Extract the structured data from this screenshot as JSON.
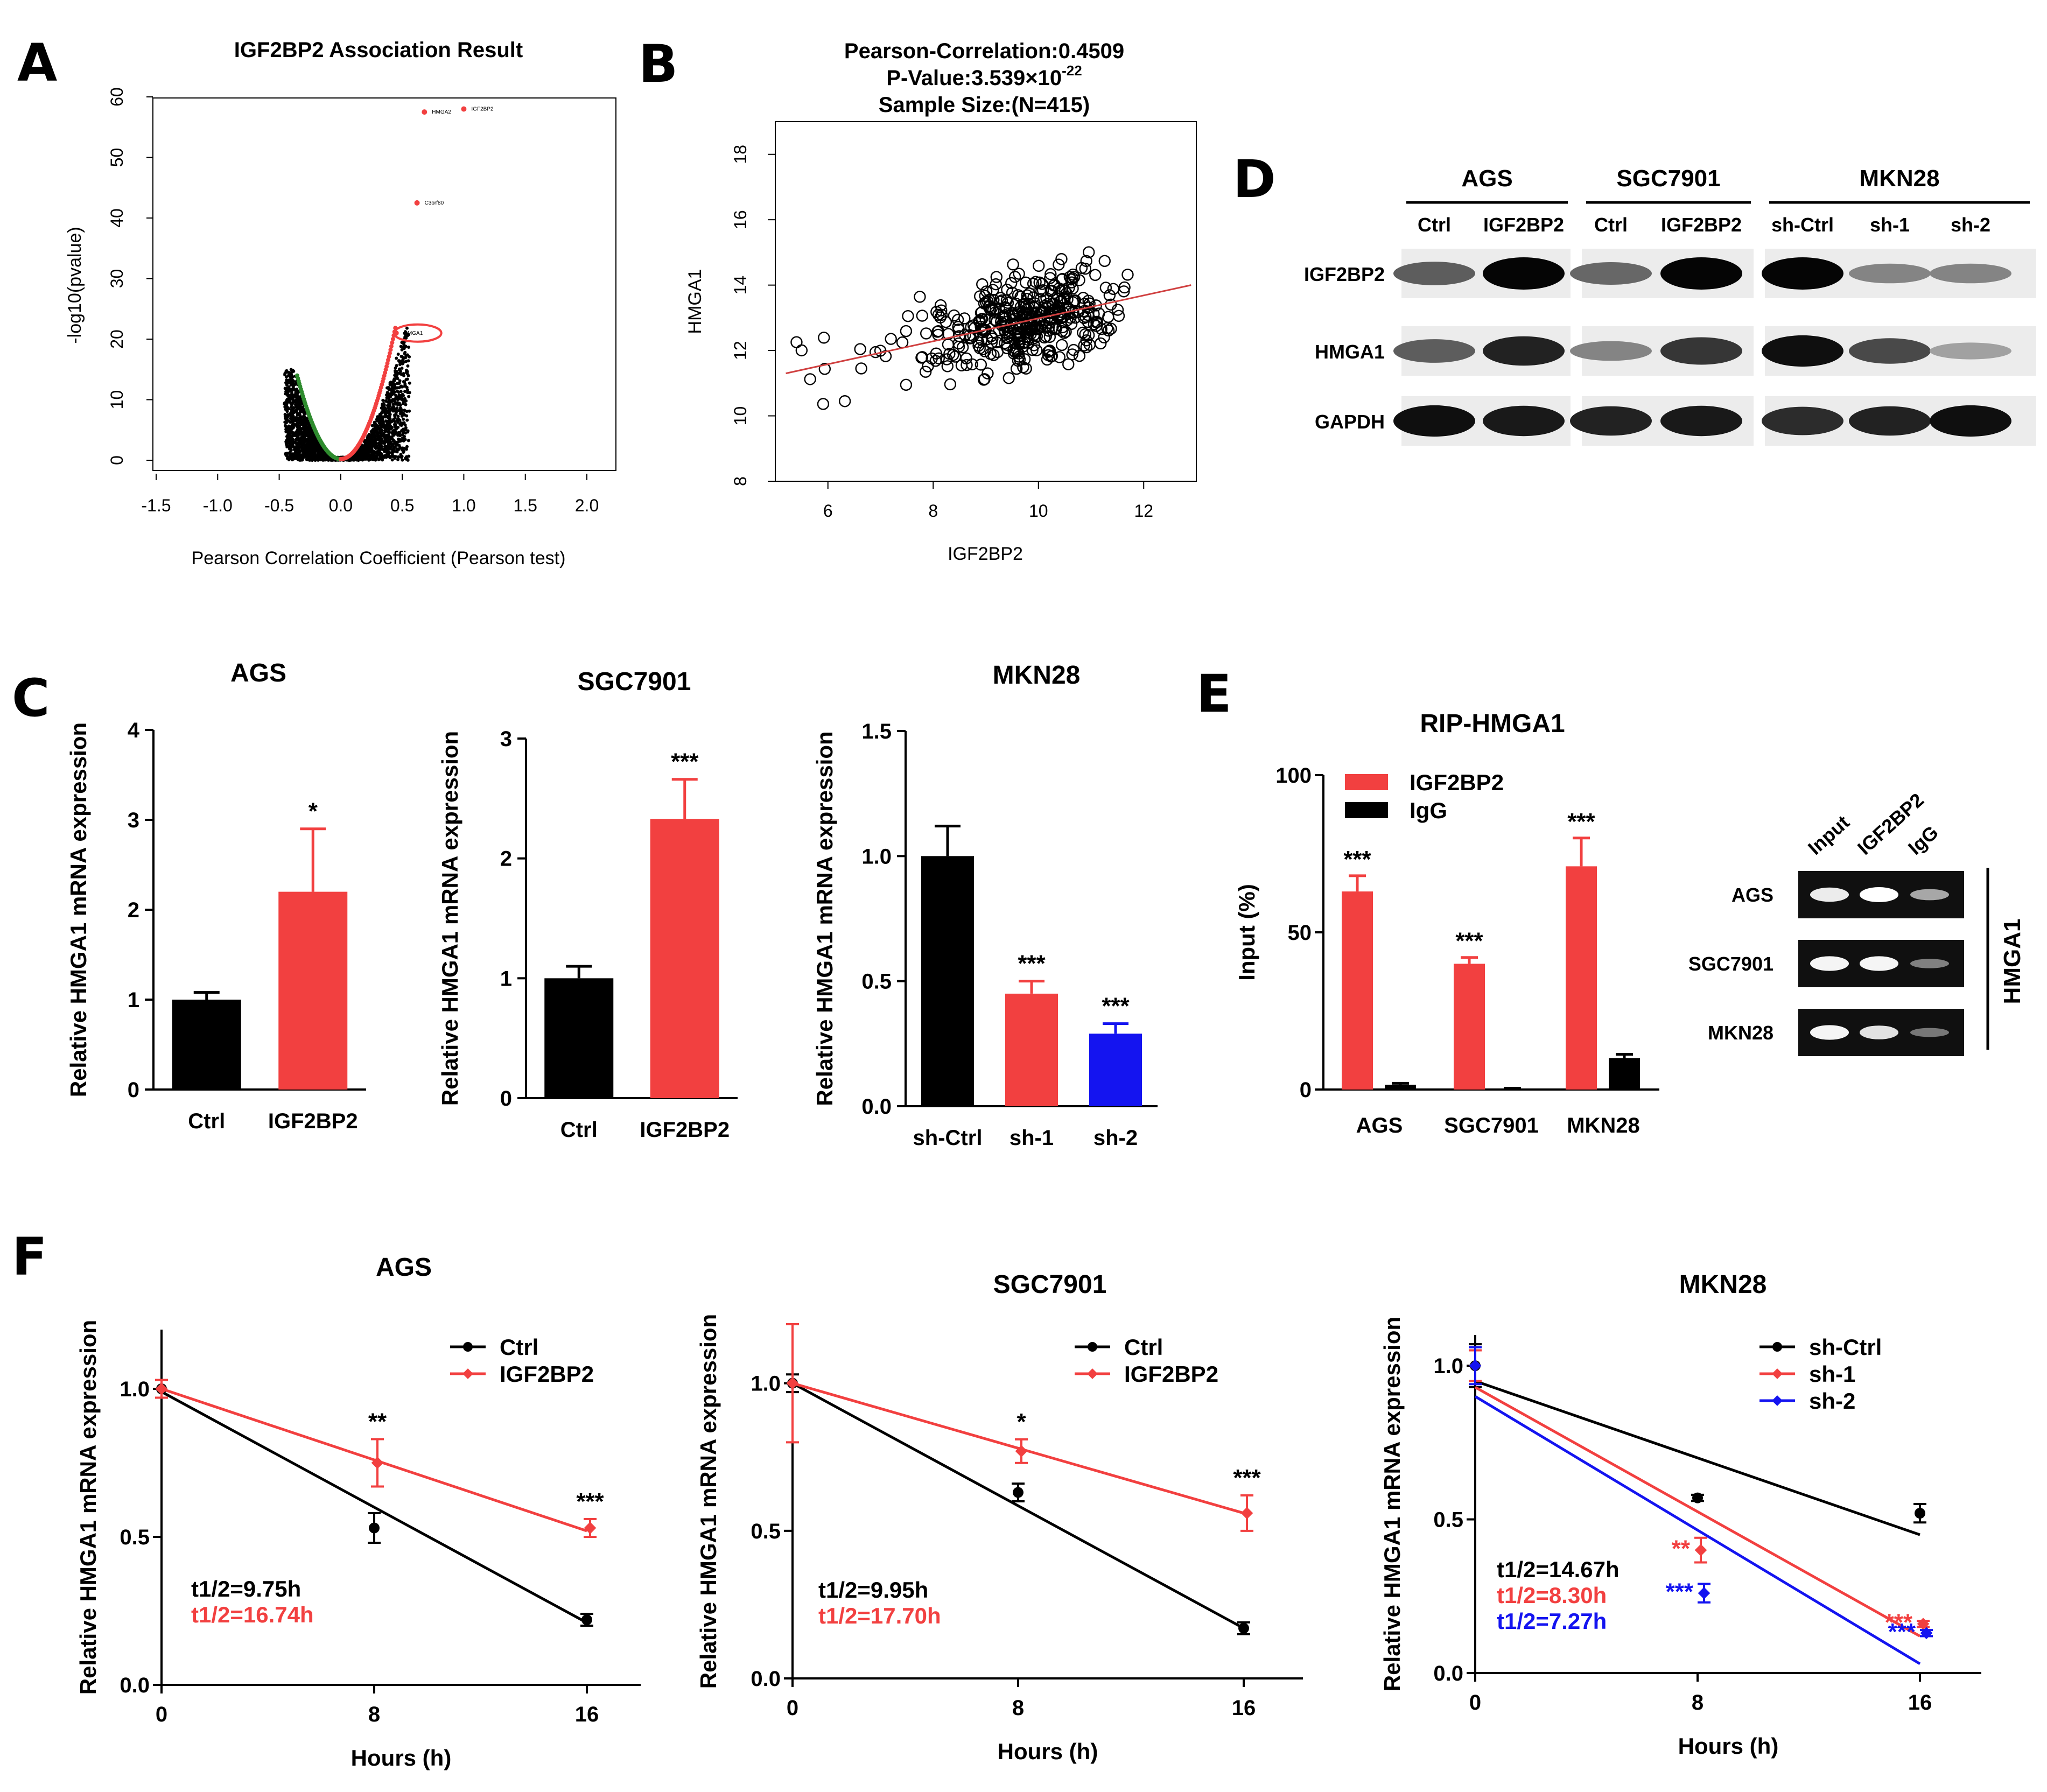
{
  "panel_labels": {
    "a": "A",
    "b": "B",
    "c": "C",
    "d": "D",
    "e": "E",
    "f": "F"
  },
  "colors": {
    "red": "#f24040",
    "black": "#000000",
    "blue": "#1414f0",
    "green": "#2e8b2e"
  },
  "chart_data": [
    {
      "id": "A",
      "type": "scatter",
      "title": "IGF2BP2 Association Result",
      "xlabel": "Pearson Correlation Coefficient (Pearson test)",
      "ylabel": "-log10(pvalue)",
      "xlim": [
        -1.5,
        2.0
      ],
      "ylim": [
        0,
        60
      ],
      "xticks": [
        "-1.5",
        "-1.0",
        "-0.5",
        "0.0",
        "0.5",
        "1.0",
        "1.5",
        "2.0"
      ],
      "yticks": [
        "0",
        "10",
        "20",
        "30",
        "40",
        "50",
        "60"
      ],
      "highlighted": [
        {
          "gene": "HMGA2",
          "x": 0.68,
          "y": 57.5
        },
        {
          "gene": "IGF2BP2",
          "x": 1.0,
          "y": 58
        },
        {
          "gene": "C3orf80",
          "x": 0.62,
          "y": 42.5
        },
        {
          "gene": "HMGA1",
          "x": 0.45,
          "y": 21
        }
      ]
    },
    {
      "id": "B",
      "type": "scatter",
      "title_lines": [
        "Pearson-Correlation:0.4509",
        "Sample Size:(N=415)"
      ],
      "pvalue": {
        "prefix": "P-Value:3.539×10",
        "exponent": "-22"
      },
      "xlabel": "IGF2BP2",
      "ylabel": "HMGA1",
      "xlim": [
        5,
        13
      ],
      "ylim": [
        8,
        19
      ],
      "xticks": [
        "6",
        "8",
        "10",
        "12"
      ],
      "yticks": [
        "8",
        "10",
        "12",
        "14",
        "16",
        "18"
      ],
      "fit": {
        "x": [
          5.2,
          12.9
        ],
        "y": [
          11.3,
          14.0
        ]
      },
      "n": 415
    },
    {
      "id": "C-AGS",
      "type": "bar",
      "title": "AGS",
      "ylabel": "Relative HMGA1 mRNA expression",
      "categories": [
        "Ctrl",
        "IGF2BP2"
      ],
      "values": [
        1.0,
        2.2
      ],
      "errors": [
        0.08,
        0.7
      ],
      "colors": [
        "#000000",
        "#f24040"
      ],
      "sig": [
        "",
        "*"
      ],
      "ylim": [
        0,
        4
      ],
      "yticks": [
        "0",
        "1",
        "2",
        "3",
        "4"
      ]
    },
    {
      "id": "C-SGC7901",
      "type": "bar",
      "title": "SGC7901",
      "ylabel": "Relative HMGA1 mRNA expression",
      "categories": [
        "Ctrl",
        "IGF2BP2"
      ],
      "values": [
        1.0,
        2.33
      ],
      "errors": [
        0.1,
        0.33
      ],
      "colors": [
        "#000000",
        "#f24040"
      ],
      "sig": [
        "",
        "***"
      ],
      "ylim": [
        0,
        3
      ],
      "yticks": [
        "0",
        "1",
        "2",
        "3"
      ]
    },
    {
      "id": "C-MKN28",
      "type": "bar",
      "title": "MKN28",
      "ylabel": "Relative HMGA1 mRNA expression",
      "categories": [
        "sh-Ctrl",
        "sh-1",
        "sh-2"
      ],
      "values": [
        1.0,
        0.45,
        0.29
      ],
      "errors": [
        0.12,
        0.05,
        0.04
      ],
      "colors": [
        "#000000",
        "#f24040",
        "#1414f0"
      ],
      "sig": [
        "",
        "***",
        "***"
      ],
      "ylim": [
        0,
        1.5
      ],
      "yticks": [
        "0.0",
        "0.5",
        "1.0",
        "1.5"
      ]
    },
    {
      "id": "E",
      "type": "bar",
      "title": "RIP-HMGA1",
      "ylabel": "Input (%)",
      "categories": [
        "AGS",
        "SGC7901",
        "MKN28"
      ],
      "series": [
        {
          "name": "IGF2BP2",
          "color": "#f24040",
          "values": [
            63,
            40,
            71
          ],
          "errors": [
            5,
            2,
            9
          ],
          "sig": [
            "***",
            "***",
            "***"
          ]
        },
        {
          "name": "IgG",
          "color": "#000000",
          "values": [
            1.5,
            0.3,
            10
          ],
          "errors": [
            0.5,
            0.1,
            1.2
          ],
          "sig": [
            "",
            "",
            ""
          ]
        }
      ],
      "ylim": [
        0,
        100
      ],
      "yticks": [
        "0",
        "50",
        "100"
      ]
    },
    {
      "id": "F-AGS",
      "type": "line",
      "title": "AGS",
      "xlabel": "Hours (h)",
      "ylabel": "Relative HMGA1 mRNA expression",
      "x": [
        0,
        8,
        16
      ],
      "xticks": [
        "0",
        "8",
        "16"
      ],
      "ylim": [
        0,
        1.2
      ],
      "yticks": [
        "0.0",
        "0.5",
        "1.0"
      ],
      "series": [
        {
          "name": "Ctrl",
          "color": "#000000",
          "values": [
            1.0,
            0.53,
            0.22
          ],
          "errors": [
            0.03,
            0.05,
            0.02
          ],
          "fit": [
            0.99,
            0.21
          ],
          "marker": "circle",
          "sig": [
            "",
            "",
            ""
          ]
        },
        {
          "name": "IGF2BP2",
          "color": "#f24040",
          "values": [
            1.0,
            0.75,
            0.53
          ],
          "errors": [
            0.03,
            0.08,
            0.03
          ],
          "fit": [
            1.0,
            0.52
          ],
          "marker": "diamond",
          "sig": [
            "",
            "**",
            "***"
          ]
        }
      ],
      "half_lives": [
        {
          "text": "t1/2=9.75h",
          "color": "#000000"
        },
        {
          "text": "t1/2=16.74h",
          "color": "#f24040"
        }
      ]
    },
    {
      "id": "F-SGC7901",
      "type": "line",
      "title": "SGC7901",
      "xlabel": "Hours (h)",
      "ylabel": "Relative HMGA1 mRNA expression",
      "x": [
        0,
        8,
        16
      ],
      "xticks": [
        "0",
        "8",
        "16"
      ],
      "ylim": [
        0,
        1.2
      ],
      "yticks": [
        "0.0",
        "0.5",
        "1.0"
      ],
      "series": [
        {
          "name": "Ctrl",
          "color": "#000000",
          "values": [
            1.0,
            0.63,
            0.17
          ],
          "errors": [
            0.03,
            0.03,
            0.02
          ],
          "fit": [
            1.0,
            0.17
          ],
          "marker": "circle",
          "sig": [
            "",
            "",
            ""
          ]
        },
        {
          "name": "IGF2BP2",
          "color": "#f24040",
          "values": [
            1.0,
            0.77,
            0.56
          ],
          "errors": [
            0.2,
            0.04,
            0.06
          ],
          "fit": [
            1.0,
            0.56
          ],
          "marker": "diamond",
          "sig": [
            "",
            "*",
            "***"
          ]
        }
      ],
      "half_lives": [
        {
          "text": "t1/2=9.95h",
          "color": "#000000"
        },
        {
          "text": "t1/2=17.70h",
          "color": "#f24040"
        }
      ]
    },
    {
      "id": "F-MKN28",
      "type": "line",
      "title": "MKN28",
      "xlabel": "Hours (h)",
      "ylabel": "Relative HMGA1 mRNA expression",
      "x": [
        0,
        8,
        16
      ],
      "xticks": [
        "0",
        "8",
        "16"
      ],
      "ylim": [
        0,
        1.1
      ],
      "yticks": [
        "0.0",
        "0.5",
        "1.0"
      ],
      "series": [
        {
          "name": "sh-Ctrl",
          "color": "#000000",
          "values": [
            1.0,
            0.57,
            0.52
          ],
          "errors": [
            0.07,
            0.01,
            0.03
          ],
          "fit": [
            0.95,
            0.45
          ],
          "marker": "circle",
          "sig": [
            "",
            "",
            ""
          ]
        },
        {
          "name": "sh-1",
          "color": "#f24040",
          "values": [
            1.0,
            0.4,
            0.16
          ],
          "errors": [
            0.05,
            0.04,
            0.01
          ],
          "fit": [
            0.93,
            0.12
          ],
          "marker": "diamond",
          "sig": [
            "",
            "**",
            "***"
          ]
        },
        {
          "name": "sh-2",
          "color": "#1414f0",
          "values": [
            1.0,
            0.26,
            0.13
          ],
          "errors": [
            0.06,
            0.03,
            0.01
          ],
          "fit": [
            0.9,
            0.03
          ],
          "marker": "diamond",
          "sig": [
            "",
            "***",
            "***"
          ]
        }
      ],
      "half_lives": [
        {
          "text": "t1/2=14.67h",
          "color": "#000000"
        },
        {
          "text": "t1/2=8.30h",
          "color": "#f24040"
        },
        {
          "text": "t1/2=7.27h",
          "color": "#1414f0"
        }
      ]
    }
  ],
  "western": {
    "groups": [
      {
        "name": "AGS",
        "lanes": [
          "Ctrl",
          "IGF2BP2"
        ]
      },
      {
        "name": "SGC7901",
        "lanes": [
          "Ctrl",
          "IGF2BP2"
        ]
      },
      {
        "name": "MKN28",
        "lanes": [
          "sh-Ctrl",
          "sh-1",
          "sh-2"
        ]
      }
    ],
    "rows": [
      "IGF2BP2",
      "HMGA1",
      "GAPDH"
    ],
    "intensity": [
      [
        0.55,
        1.0,
        0.5,
        1.0,
        1.0,
        0.35,
        0.35
      ],
      [
        0.55,
        0.85,
        0.35,
        0.75,
        0.95,
        0.65,
        0.2
      ],
      [
        0.95,
        0.9,
        0.85,
        0.9,
        0.8,
        0.85,
        0.95
      ]
    ]
  },
  "rip_gel": {
    "columns": [
      "Input",
      "IGF2BP2",
      "IgG"
    ],
    "rows": [
      "AGS",
      "SGC7901",
      "MKN28"
    ],
    "side_label": "HMGA1",
    "intensity": [
      [
        0.9,
        1.0,
        0.55
      ],
      [
        0.95,
        0.95,
        0.35
      ],
      [
        0.95,
        0.85,
        0.3
      ]
    ]
  }
}
